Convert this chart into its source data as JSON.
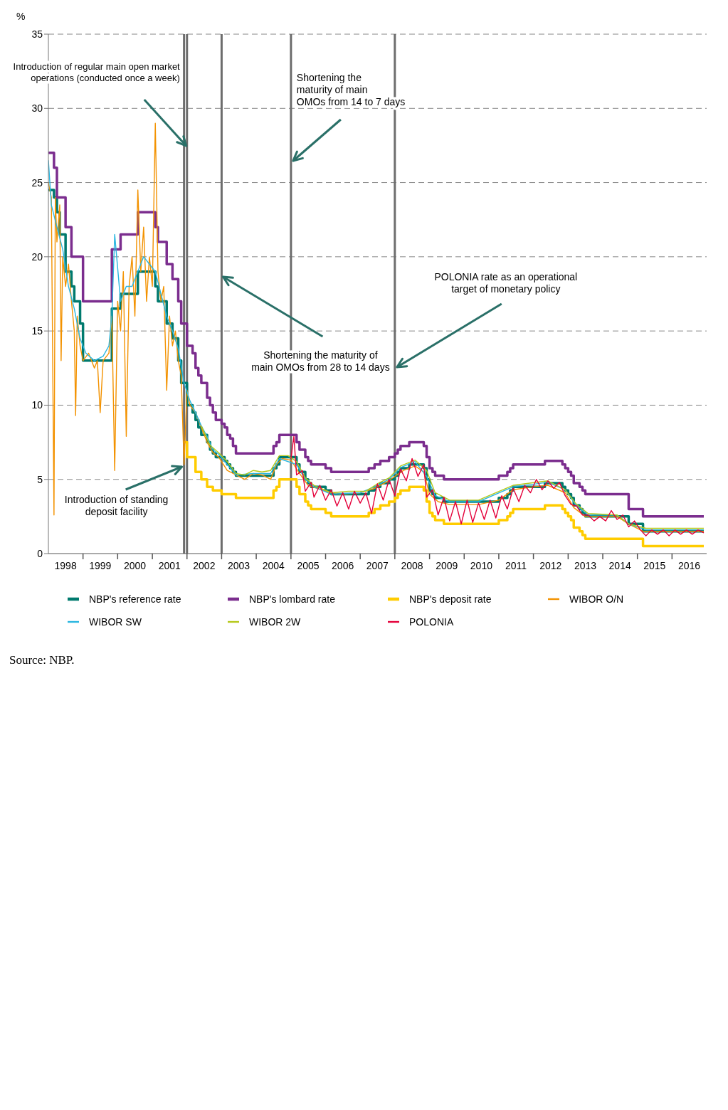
{
  "chart_data": {
    "type": "line",
    "ylabel": "%",
    "xlim": [
      "1998-01",
      "2016-12-31"
    ],
    "ylim": [
      0,
      35
    ],
    "yticks": [
      0,
      5,
      10,
      15,
      20,
      25,
      30,
      35
    ],
    "xticks": [
      {
        "value": "1998-07",
        "label": "1998"
      },
      {
        "value": "1999-01",
        "label": null
      },
      {
        "value": "1999-07",
        "label": "1999"
      },
      {
        "value": "2000-01",
        "label": null
      },
      {
        "value": "2000-07",
        "label": "2000"
      },
      {
        "value": "2001-01",
        "label": null
      },
      {
        "value": "2001-07",
        "label": "2001"
      },
      {
        "value": "2002-01",
        "label": null
      },
      {
        "value": "2002-07",
        "label": "2002"
      },
      {
        "value": "2003-01",
        "label": null
      },
      {
        "value": "2003-07",
        "label": "2003"
      },
      {
        "value": "2004-01",
        "label": null
      },
      {
        "value": "2004-07",
        "label": "2004"
      },
      {
        "value": "2005-01",
        "label": null
      },
      {
        "value": "2005-07",
        "label": "2005"
      },
      {
        "value": "2006-01",
        "label": null
      },
      {
        "value": "2006-07",
        "label": "2006"
      },
      {
        "value": "2007-01",
        "label": null
      },
      {
        "value": "2007-07",
        "label": "2007"
      },
      {
        "value": "2008-01",
        "label": null
      },
      {
        "value": "2008-07",
        "label": "2008"
      },
      {
        "value": "2009-01",
        "label": null
      },
      {
        "value": "2009-07",
        "label": "2009"
      },
      {
        "value": "2010-01",
        "label": null
      },
      {
        "value": "2010-07",
        "label": "2010"
      },
      {
        "value": "2011-01",
        "label": null
      },
      {
        "value": "2011-07",
        "label": "2011"
      },
      {
        "value": "2012-01",
        "label": null
      },
      {
        "value": "2012-07",
        "label": "2012"
      },
      {
        "value": "2013-01",
        "label": null
      },
      {
        "value": "2013-07",
        "label": "2013"
      },
      {
        "value": "2014-01",
        "label": null
      },
      {
        "value": "2014-07",
        "label": "2014"
      },
      {
        "value": "2015-01",
        "label": null
      },
      {
        "value": "2015-07",
        "label": "2015"
      },
      {
        "value": "2016-01",
        "label": null
      },
      {
        "value": "2016-07",
        "label": "2016"
      }
    ],
    "grid": "y",
    "legend": "bottom",
    "series": [
      {
        "name": "NBP's reference rate",
        "type": "step",
        "color": "#007a6e",
        "x": [
          "1998-01",
          "1998-03",
          "1998-04",
          "1998-05",
          "1998-07",
          "1998-09",
          "1998-10",
          "1998-12",
          "1999-01",
          "1999-11",
          "2000-02",
          "2000-08",
          "2001-02",
          "2001-03",
          "2001-06",
          "2001-08",
          "2001-10",
          "2001-11",
          "2002-01",
          "2002-03",
          "2002-04",
          "2002-05",
          "2002-06",
          "2002-08",
          "2002-09",
          "2002-10",
          "2002-11",
          "2003-01",
          "2003-02",
          "2003-03",
          "2003-04",
          "2003-05",
          "2003-06",
          "2004-07",
          "2004-08",
          "2004-09",
          "2005-03",
          "2005-04",
          "2005-06",
          "2005-07",
          "2005-08",
          "2006-01",
          "2006-03",
          "2007-04",
          "2007-06",
          "2007-08",
          "2007-11",
          "2008-01",
          "2008-02",
          "2008-03",
          "2008-06",
          "2008-11",
          "2008-12",
          "2009-01",
          "2009-02",
          "2009-03",
          "2009-06",
          "2011-01",
          "2011-04",
          "2011-05",
          "2011-06",
          "2012-05",
          "2012-11",
          "2012-12",
          "2013-01",
          "2013-02",
          "2013-03",
          "2013-05",
          "2013-06",
          "2013-07",
          "2014-10",
          "2015-03",
          "2016-12"
        ],
        "values": [
          24.5,
          24,
          23,
          21.5,
          19,
          18,
          17,
          15.5,
          13,
          16.5,
          17.5,
          19,
          18,
          17,
          15.5,
          14.5,
          13,
          11.5,
          10,
          9.5,
          9,
          8.5,
          8,
          7.5,
          7,
          6.75,
          6.5,
          6.5,
          6.25,
          6,
          5.75,
          5.5,
          5.25,
          5.75,
          6,
          6.5,
          6,
          5.5,
          5,
          4.75,
          4.5,
          4.25,
          4,
          4.25,
          4.5,
          4.75,
          5,
          5.25,
          5.5,
          5.75,
          6,
          5.75,
          5,
          4.25,
          4,
          3.75,
          3.5,
          3.75,
          4,
          4.25,
          4.5,
          4.75,
          4.5,
          4.25,
          4,
          3.75,
          3.25,
          3,
          2.75,
          2.5,
          2,
          1.5,
          1.5
        ]
      },
      {
        "name": "NBP's lombard rate",
        "type": "step",
        "color": "#7b2d8e",
        "x": [
          "1998-01",
          "1998-03",
          "1998-04",
          "1998-07",
          "1998-09",
          "1999-01",
          "1999-11",
          "2000-02",
          "2000-08",
          "2001-02",
          "2001-03",
          "2001-06",
          "2001-08",
          "2001-10",
          "2001-11",
          "2002-01",
          "2002-03",
          "2002-04",
          "2002-05",
          "2002-06",
          "2002-08",
          "2002-09",
          "2002-10",
          "2002-11",
          "2003-01",
          "2003-02",
          "2003-03",
          "2003-04",
          "2003-05",
          "2003-06",
          "2004-07",
          "2004-08",
          "2004-09",
          "2005-03",
          "2005-04",
          "2005-06",
          "2005-07",
          "2005-08",
          "2006-01",
          "2006-03",
          "2007-04",
          "2007-06",
          "2007-08",
          "2007-11",
          "2008-01",
          "2008-02",
          "2008-03",
          "2008-06",
          "2008-11",
          "2008-12",
          "2009-01",
          "2009-02",
          "2009-03",
          "2009-06",
          "2011-01",
          "2011-04",
          "2011-05",
          "2011-06",
          "2012-05",
          "2012-11",
          "2012-12",
          "2013-01",
          "2013-02",
          "2013-03",
          "2013-05",
          "2013-06",
          "2013-07",
          "2014-10",
          "2015-03",
          "2016-12"
        ],
        "values": [
          27,
          26,
          24,
          22,
          20,
          17,
          20.5,
          21.5,
          23,
          22,
          21,
          19.5,
          18.5,
          17,
          15.5,
          14,
          13.5,
          12.5,
          12,
          11.5,
          10.5,
          10,
          9.5,
          9,
          8.75,
          8.5,
          8,
          7.75,
          7.25,
          6.75,
          7.25,
          7.5,
          8,
          7.5,
          7,
          6.5,
          6.25,
          6,
          5.75,
          5.5,
          5.75,
          6,
          6.25,
          6.5,
          6.75,
          7,
          7.25,
          7.5,
          7.25,
          6.5,
          5.75,
          5.5,
          5.25,
          5,
          5.25,
          5.5,
          5.75,
          6,
          6.25,
          6,
          5.75,
          5.5,
          5.25,
          4.75,
          4.5,
          4.25,
          4,
          3,
          2.5,
          2.5
        ]
      },
      {
        "name": "NBP's deposit rate",
        "type": "step",
        "color": "#ffcc00",
        "x": [
          "2001-12",
          "2002-01",
          "2002-04",
          "2002-06",
          "2002-08",
          "2002-10",
          "2003-01",
          "2003-06",
          "2004-07",
          "2004-08",
          "2004-09",
          "2005-03",
          "2005-04",
          "2005-06",
          "2005-07",
          "2005-08",
          "2006-01",
          "2006-03",
          "2007-04",
          "2007-06",
          "2007-08",
          "2007-11",
          "2008-01",
          "2008-02",
          "2008-03",
          "2008-06",
          "2008-11",
          "2008-12",
          "2009-01",
          "2009-02",
          "2009-03",
          "2009-06",
          "2011-01",
          "2011-04",
          "2011-05",
          "2011-06",
          "2012-05",
          "2012-11",
          "2012-12",
          "2013-01",
          "2013-02",
          "2013-03",
          "2013-05",
          "2013-06",
          "2013-07",
          "2015-03",
          "2016-12"
        ],
        "values": [
          7.5,
          6.5,
          5.5,
          5,
          4.5,
          4.25,
          4,
          3.75,
          4.25,
          4.5,
          5,
          4.5,
          4,
          3.5,
          3.25,
          3,
          2.75,
          2.5,
          2.75,
          3,
          3.25,
          3.5,
          3.75,
          4,
          4.25,
          4.5,
          4.25,
          3.5,
          2.75,
          2.5,
          2.25,
          2,
          2.25,
          2.5,
          2.75,
          3,
          3.25,
          3,
          2.75,
          2.5,
          2.25,
          1.75,
          1.5,
          1.25,
          1,
          0.5,
          0.5
        ]
      },
      {
        "name": "WIBOR O/N",
        "type": "line",
        "color": "#f39200",
        "x": [
          "1998-01",
          "1998-02",
          "1998-03",
          "1998-03-15",
          "1998-04",
          "1998-05",
          "1998-05-15",
          "1998-06",
          "1998-07",
          "1998-08",
          "1998-09",
          "1998-10",
          "1998-10-15",
          "1998-11",
          "1998-12",
          "1999-01",
          "1999-03",
          "1999-05",
          "1999-06",
          "1999-07",
          "1999-08",
          "1999-10",
          "1999-11",
          "1999-12",
          "2000-01",
          "2000-02",
          "2000-03",
          "2000-04",
          "2000-05",
          "2000-06",
          "2000-07",
          "2000-08",
          "2000-09",
          "2000-10",
          "2000-11",
          "2000-12",
          "2001-01",
          "2001-02",
          "2001-03",
          "2001-04",
          "2001-05",
          "2001-06",
          "2001-07",
          "2001-08",
          "2001-09",
          "2001-10",
          "2001-11",
          "2001-12",
          "2002-01",
          "2002-02",
          "2002-04",
          "2002-06",
          "2002-08",
          "2002-10",
          "2002-12",
          "2003-03",
          "2003-06",
          "2003-09",
          "2003-12",
          "2004-03",
          "2004-06",
          "2004-08",
          "2004-10",
          "2005-01",
          "2005-04",
          "2005-07",
          "2005-10",
          "2006-01",
          "2006-06",
          "2007-01",
          "2007-06",
          "2007-10",
          "2008-01",
          "2008-04",
          "2008-08",
          "2008-11",
          "2009-01",
          "2009-04",
          "2009-08",
          "2010-01",
          "2010-06",
          "2011-01",
          "2011-06",
          "2012-01",
          "2012-06",
          "2012-12",
          "2013-03",
          "2013-07",
          "2014-01",
          "2014-06",
          "2014-10",
          "2015-03",
          "2015-09",
          "2016-06",
          "2016-12"
        ],
        "values": [
          25,
          24,
          2.6,
          24,
          21,
          23.5,
          13,
          20,
          18,
          19.5,
          17,
          15,
          9.3,
          16,
          14,
          13,
          13.5,
          12.5,
          13,
          9.5,
          13,
          13.5,
          16,
          5.6,
          17,
          15,
          19,
          7.9,
          18,
          20,
          16,
          24.5,
          19,
          22,
          17,
          20,
          18,
          29,
          19,
          17,
          18,
          11,
          16,
          14,
          15,
          13,
          12,
          6,
          11,
          10,
          9.5,
          8.5,
          7.5,
          6.8,
          6.5,
          5.6,
          5.3,
          5,
          5.4,
          5.3,
          5,
          6,
          6.4,
          6.3,
          5.4,
          4.6,
          4.4,
          4.2,
          4,
          4.1,
          4.4,
          4.8,
          5.2,
          5.6,
          5.9,
          5.5,
          4,
          3.5,
          3.3,
          3.3,
          3.3,
          3.6,
          4.3,
          4.5,
          4.6,
          4.1,
          3.1,
          2.5,
          2.5,
          2.5,
          2,
          1.5,
          1.5,
          1.5,
          1.5
        ]
      },
      {
        "name": "WIBOR SW",
        "type": "line",
        "color": "#29b6e0",
        "x": [
          "1998-01",
          "1998-02",
          "1998-04",
          "1998-06",
          "1998-08",
          "1998-10",
          "1998-12",
          "1999-02",
          "1999-05",
          "1999-08",
          "1999-10",
          "1999-11",
          "1999-12",
          "2000-02",
          "2000-04",
          "2000-06",
          "2000-08",
          "2000-10",
          "2000-12",
          "2001-02",
          "2001-04",
          "2001-06",
          "2001-08",
          "2001-10",
          "2001-12",
          "2002-02",
          "2002-04",
          "2002-06",
          "2002-08",
          "2002-10",
          "2002-12",
          "2003-03",
          "2003-06",
          "2003-12",
          "2004-06",
          "2004-09",
          "2005-03",
          "2005-06",
          "2005-09",
          "2006-03",
          "2007-01",
          "2007-06",
          "2007-11",
          "2008-03",
          "2008-08",
          "2008-12",
          "2009-03",
          "2009-08",
          "2010-06",
          "2011-06",
          "2012-06",
          "2012-12",
          "2013-04",
          "2013-08",
          "2014-06",
          "2014-10",
          "2015-04",
          "2016-12"
        ],
        "values": [
          26.5,
          23.5,
          22,
          20.5,
          18,
          16.5,
          14.5,
          13.5,
          13,
          13.3,
          14,
          16,
          21.5,
          17,
          18,
          18,
          19,
          20,
          19.5,
          19,
          17.5,
          16,
          15,
          13.8,
          11.5,
          10.3,
          9.5,
          8.6,
          7.9,
          7,
          6.7,
          6,
          5.3,
          5.4,
          5.4,
          6.4,
          6,
          5,
          4.5,
          4,
          4.1,
          4.5,
          5,
          5.8,
          6.2,
          5.2,
          3.9,
          3.5,
          3.5,
          4.5,
          4.8,
          4.3,
          3.2,
          2.6,
          2.6,
          2,
          1.6,
          1.6
        ]
      },
      {
        "name": "WIBOR 2W",
        "type": "line",
        "color": "#b5c81a",
        "x": [
          "2002-06",
          "2002-09",
          "2002-12",
          "2003-03",
          "2003-06",
          "2003-09",
          "2003-12",
          "2004-03",
          "2004-06",
          "2004-09",
          "2004-12",
          "2005-03",
          "2005-06",
          "2005-09",
          "2006-03",
          "2006-09",
          "2007-03",
          "2007-07",
          "2007-11",
          "2008-03",
          "2008-08",
          "2008-12",
          "2009-03",
          "2009-08",
          "2010-06",
          "2011-06",
          "2012-06",
          "2012-12",
          "2013-04",
          "2013-08",
          "2014-06",
          "2014-10",
          "2015-04",
          "2016-12"
        ],
        "values": [
          8.6,
          7.3,
          6.8,
          6.2,
          5.4,
          5.3,
          5.6,
          5.5,
          5.6,
          6.6,
          6.6,
          6.2,
          5.1,
          4.6,
          4.1,
          4.2,
          4.2,
          4.7,
          5.1,
          5.9,
          6.3,
          5.6,
          4.1,
          3.6,
          3.6,
          4.6,
          4.9,
          4.3,
          3.3,
          2.7,
          2.6,
          2,
          1.7,
          1.7
        ]
      },
      {
        "name": "POLONIA",
        "type": "line",
        "color": "#e4003a",
        "x": [
          "2005-01",
          "2005-02",
          "2005-03",
          "2005-05",
          "2005-06",
          "2005-08",
          "2005-09",
          "2005-11",
          "2006-01",
          "2006-03",
          "2006-05",
          "2006-07",
          "2006-09",
          "2006-11",
          "2007-01",
          "2007-03",
          "2007-05",
          "2007-07",
          "2007-09",
          "2007-11",
          "2008-01",
          "2008-03",
          "2008-05",
          "2008-07",
          "2008-09",
          "2008-11",
          "2008-12",
          "2009-02",
          "2009-04",
          "2009-06",
          "2009-08",
          "2009-10",
          "2009-12",
          "2010-02",
          "2010-04",
          "2010-06",
          "2010-08",
          "2010-10",
          "2010-12",
          "2011-02",
          "2011-04",
          "2011-06",
          "2011-08",
          "2011-10",
          "2011-12",
          "2012-02",
          "2012-04",
          "2012-06",
          "2012-08",
          "2012-10",
          "2012-12",
          "2013-02",
          "2013-04",
          "2013-06",
          "2013-08",
          "2013-10",
          "2013-12",
          "2014-02",
          "2014-04",
          "2014-06",
          "2014-08",
          "2014-10",
          "2014-12",
          "2015-02",
          "2015-04",
          "2015-06",
          "2015-08",
          "2015-10",
          "2015-12",
          "2016-02",
          "2016-04",
          "2016-06",
          "2016-08",
          "2016-10",
          "2016-12"
        ],
        "values": [
          6.4,
          7.9,
          5.3,
          5.6,
          4.2,
          4.8,
          3.8,
          4.6,
          3.6,
          4.3,
          3.2,
          4.1,
          3,
          4.2,
          3.4,
          4.1,
          2.7,
          4.7,
          3.6,
          5,
          3.9,
          5.7,
          4.9,
          6.4,
          5.2,
          6,
          3.8,
          4.3,
          2.6,
          3.8,
          2.2,
          3.5,
          2,
          3.6,
          2.1,
          3.4,
          2.3,
          3.6,
          2.4,
          3.9,
          3,
          4.4,
          3.5,
          4.6,
          4.1,
          5,
          4.3,
          4.9,
          4.4,
          4.8,
          3.9,
          3.3,
          3.2,
          2.6,
          2.6,
          2.2,
          2.5,
          2.2,
          2.9,
          2.3,
          2.6,
          1.8,
          2.2,
          1.6,
          1.2,
          1.6,
          1.3,
          1.6,
          1.2,
          1.6,
          1.3,
          1.6,
          1.3,
          1.6,
          1.4
        ]
      }
    ],
    "ref_lines": [
      {
        "axis": "x",
        "value": "2001-12",
        "label": "Introduction of standing deposit facility",
        "color": "#6d6d6d"
      },
      {
        "axis": "x",
        "value": "2002-01",
        "label": "Introduction of regular main open market operations (conducted once a week)",
        "color": "#6d6d6d"
      },
      {
        "axis": "x",
        "value": "2003-01",
        "label": "Shortening the maturity of main OMOs from 28 to 14 days",
        "color": "#6d6d6d"
      },
      {
        "axis": "x",
        "value": "2005-01",
        "label": "Shortening the maturity of main OMOs from 14 to 7 days",
        "color": "#6d6d6d"
      },
      {
        "axis": "x",
        "value": "2008-01",
        "label": "POLONIA rate as an operational target of monetary policy",
        "color": "#6d6d6d"
      }
    ],
    "annotations": [
      "Source: NBP."
    ]
  }
}
